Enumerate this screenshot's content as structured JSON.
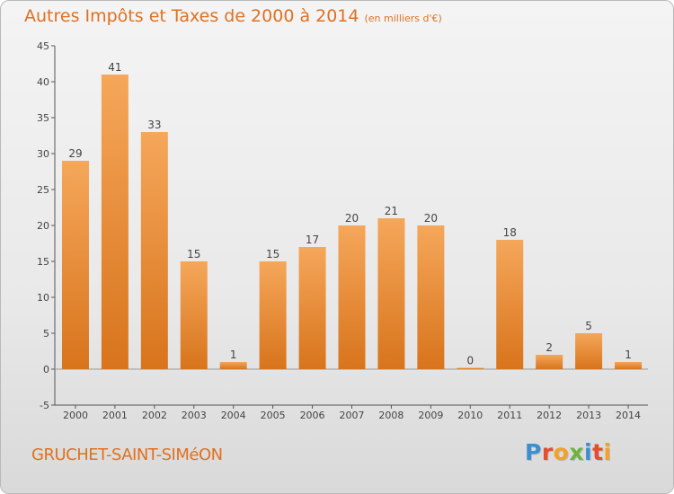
{
  "title": "Autres Impôts et Taxes de 2000 à 2014",
  "subtitle": "(en milliers d'€)",
  "location": "GRUCHET-SAINT-SIMéON",
  "logo": {
    "text": "Proxiti",
    "colors": [
      "#3a8fd0",
      "#e64c2e",
      "#f2a12a",
      "#6cb33e",
      "#3a8fd0",
      "#e64c2e",
      "#f2a12a"
    ]
  },
  "colors": {
    "accent": "#e07020",
    "bar_top": "#f5a75a",
    "bar_bottom": "#d8741c"
  },
  "chart_data": {
    "type": "bar",
    "categories": [
      "2000",
      "2001",
      "2002",
      "2003",
      "2004",
      "2005",
      "2006",
      "2007",
      "2008",
      "2009",
      "2010",
      "2011",
      "2012",
      "2013",
      "2014"
    ],
    "values": [
      29,
      41,
      33,
      15,
      1,
      15,
      17,
      20,
      21,
      20,
      0,
      18,
      2,
      5,
      1
    ],
    "ylim": [
      -5,
      45
    ],
    "yticks": [
      -5,
      0,
      5,
      10,
      15,
      20,
      25,
      30,
      35,
      40,
      45
    ],
    "grid": false,
    "legend": "none"
  }
}
